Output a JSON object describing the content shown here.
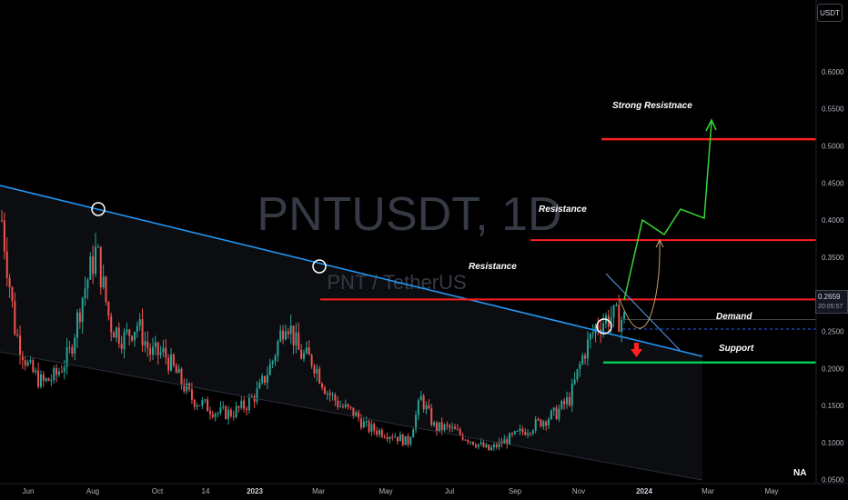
{
  "chart_data": {
    "type": "candlestick",
    "title": "PNTUSDT, 1D",
    "subtitle": "PNT / TetherUS",
    "currency": "USDT",
    "current_price": "0.2659",
    "countdown": "20:05:57",
    "ylim": [
      0.02,
      0.67
    ],
    "y_ticks": [
      "0.6000",
      "0.5500",
      "0.5000",
      "0.4500",
      "0.4000",
      "0.3500",
      "0.3000",
      "0.2500",
      "0.2000",
      "0.1500",
      "0.1000",
      "0.0500"
    ],
    "x_ticks": [
      {
        "label": "Jun",
        "year": false
      },
      {
        "label": "Aug",
        "year": false
      },
      {
        "label": "Oct",
        "year": false
      },
      {
        "label": "14",
        "year": false
      },
      {
        "label": "2023",
        "year": true
      },
      {
        "label": "Mar",
        "year": false
      },
      {
        "label": "May",
        "year": false
      },
      {
        "label": "Jul",
        "year": false
      },
      {
        "label": "Sep",
        "year": false
      },
      {
        "label": "Nov",
        "year": false
      },
      {
        "label": "2024",
        "year": true
      },
      {
        "label": "Mar",
        "year": false
      },
      {
        "label": "May",
        "year": false
      }
    ],
    "price_path": [
      [
        0,
        0.4
      ],
      [
        1,
        0.25
      ],
      [
        2,
        0.2
      ],
      [
        3,
        0.18
      ],
      [
        4,
        0.19
      ],
      [
        5,
        0.22
      ],
      [
        6,
        0.3
      ],
      [
        7,
        0.36
      ],
      [
        8,
        0.26
      ],
      [
        9,
        0.24
      ],
      [
        10,
        0.26
      ],
      [
        11,
        0.22
      ],
      [
        12,
        0.22
      ],
      [
        13,
        0.19
      ],
      [
        14,
        0.16
      ],
      [
        15,
        0.15
      ],
      [
        16,
        0.14
      ],
      [
        17,
        0.14
      ],
      [
        18,
        0.15
      ],
      [
        19,
        0.17
      ],
      [
        20,
        0.21
      ],
      [
        21,
        0.27
      ],
      [
        22,
        0.22
      ],
      [
        23,
        0.21
      ],
      [
        24,
        0.17
      ],
      [
        25,
        0.15
      ],
      [
        26,
        0.14
      ],
      [
        27,
        0.12
      ],
      [
        28,
        0.115
      ],
      [
        29,
        0.11
      ],
      [
        30,
        0.1
      ],
      [
        31,
        0.16
      ],
      [
        32,
        0.12
      ],
      [
        33,
        0.12
      ],
      [
        34,
        0.11
      ],
      [
        35,
        0.1
      ],
      [
        36,
        0.09
      ],
      [
        37,
        0.1
      ],
      [
        38,
        0.11
      ],
      [
        39,
        0.12
      ],
      [
        40,
        0.13
      ],
      [
        41,
        0.14
      ],
      [
        42,
        0.16
      ],
      [
        43,
        0.22
      ],
      [
        44,
        0.26
      ],
      [
        45,
        0.27
      ],
      [
        46,
        0.2659
      ]
    ],
    "annotations": [
      {
        "text": "Strong Resistnace",
        "price": 0.509
      },
      {
        "text": "Resistance",
        "price": 0.373
      },
      {
        "text": "Resistance",
        "price": 0.293
      },
      {
        "text": "Demand",
        "price": 0.253
      },
      {
        "text": "Support",
        "price": 0.208
      }
    ],
    "logo": "NA",
    "colors": {
      "background": "#000000",
      "up": "#26a69a",
      "down": "#ef5350",
      "channel_line": "#2196f3",
      "resistance": "#ff1e1e",
      "support": "#00c853",
      "projection": "#34d834",
      "alt_path": "#c8a06a",
      "down_arrow": "#ff2020"
    }
  }
}
